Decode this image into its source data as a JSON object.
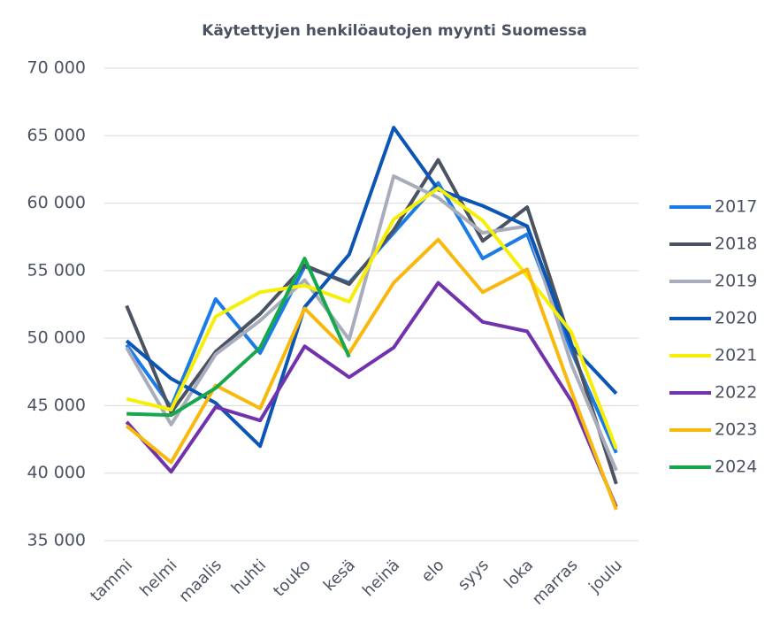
{
  "chart_data": {
    "type": "line",
    "title": "Käytettyjen henkilöautojen  myynti Suomessa",
    "categories": [
      "tammi",
      "helmi",
      "maalis",
      "huhti",
      "touko",
      "kesä",
      "heinä",
      "elo",
      "syys",
      "loka",
      "marras",
      "joulu"
    ],
    "series": [
      {
        "name": "2017",
        "color": "#1b7ce8",
        "values": [
          49500,
          44900,
          52900,
          48900,
          55300,
          54100,
          57800,
          61500,
          55900,
          57700,
          49000,
          41500
        ]
      },
      {
        "name": "2018",
        "color": "#4b5262",
        "values": [
          52400,
          44500,
          49000,
          51800,
          55400,
          54000,
          58000,
          63200,
          57200,
          59700,
          49500,
          39200
        ]
      },
      {
        "name": "2019",
        "color": "#a9adbb",
        "values": [
          49300,
          43600,
          48800,
          51300,
          54300,
          49900,
          62000,
          60400,
          57800,
          58300,
          48000,
          40200
        ]
      },
      {
        "name": "2020",
        "color": "#0b55b5",
        "values": [
          49800,
          47000,
          45200,
          42000,
          52300,
          56200,
          65600,
          61000,
          59800,
          58300,
          49400,
          45900
        ]
      },
      {
        "name": "2021",
        "color": "#f7ee05",
        "values": [
          45500,
          44700,
          51600,
          53400,
          53900,
          52700,
          58800,
          61100,
          58700,
          54600,
          50400,
          41800
        ]
      },
      {
        "name": "2022",
        "color": "#7133ad",
        "values": [
          43800,
          40100,
          44900,
          43900,
          49400,
          47100,
          49300,
          54100,
          51200,
          50500,
          45300,
          37500
        ]
      },
      {
        "name": "2023",
        "color": "#f8b80c",
        "values": [
          43500,
          40800,
          46500,
          44800,
          52200,
          48900,
          54100,
          57300,
          53400,
          55100,
          46000,
          37300
        ]
      },
      {
        "name": "2024",
        "color": "#17a74c",
        "values": [
          44400,
          44300,
          46300,
          49300,
          55900,
          48600,
          null,
          null,
          null,
          null,
          null,
          null
        ]
      }
    ],
    "ylim": [
      35000,
      70000
    ],
    "yticks": [
      {
        "value": 35000,
        "label": "35 000"
      },
      {
        "value": 40000,
        "label": "40 000"
      },
      {
        "value": 45000,
        "label": "45 000"
      },
      {
        "value": 50000,
        "label": "50 000"
      },
      {
        "value": 55000,
        "label": "55 000"
      },
      {
        "value": 60000,
        "label": "60 000"
      },
      {
        "value": 65000,
        "label": "65 000"
      },
      {
        "value": 70000,
        "label": "70 000"
      }
    ],
    "grid": true,
    "legend": "right"
  }
}
